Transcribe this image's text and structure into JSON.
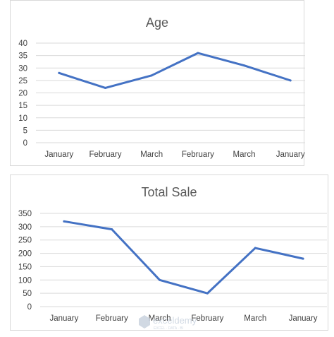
{
  "chart_data": [
    {
      "type": "line",
      "title": "Age",
      "categories": [
        "January",
        "February",
        "March",
        "February",
        "March",
        "January"
      ],
      "values": [
        28,
        22,
        27,
        36,
        31,
        25
      ],
      "ylim": [
        0,
        40
      ],
      "yticks": [
        0,
        5,
        10,
        15,
        20,
        25,
        30,
        35,
        40
      ],
      "grid": true,
      "colors": {
        "series": "#4472c4",
        "grid": "#d9d9d9"
      }
    },
    {
      "type": "line",
      "title": "Total Sale",
      "categories": [
        "January",
        "February",
        "March",
        "February",
        "March",
        "January"
      ],
      "values": [
        320,
        290,
        100,
        50,
        220,
        180
      ],
      "ylim": [
        0,
        350
      ],
      "yticks": [
        0,
        50,
        100,
        150,
        200,
        250,
        300,
        350
      ],
      "grid": true,
      "colors": {
        "series": "#4472c4",
        "grid": "#d9d9d9"
      }
    }
  ],
  "watermark": {
    "brand": "exceldemy",
    "tagline": "EXCEL · DATA · BI",
    "icon": "logo-icon"
  }
}
